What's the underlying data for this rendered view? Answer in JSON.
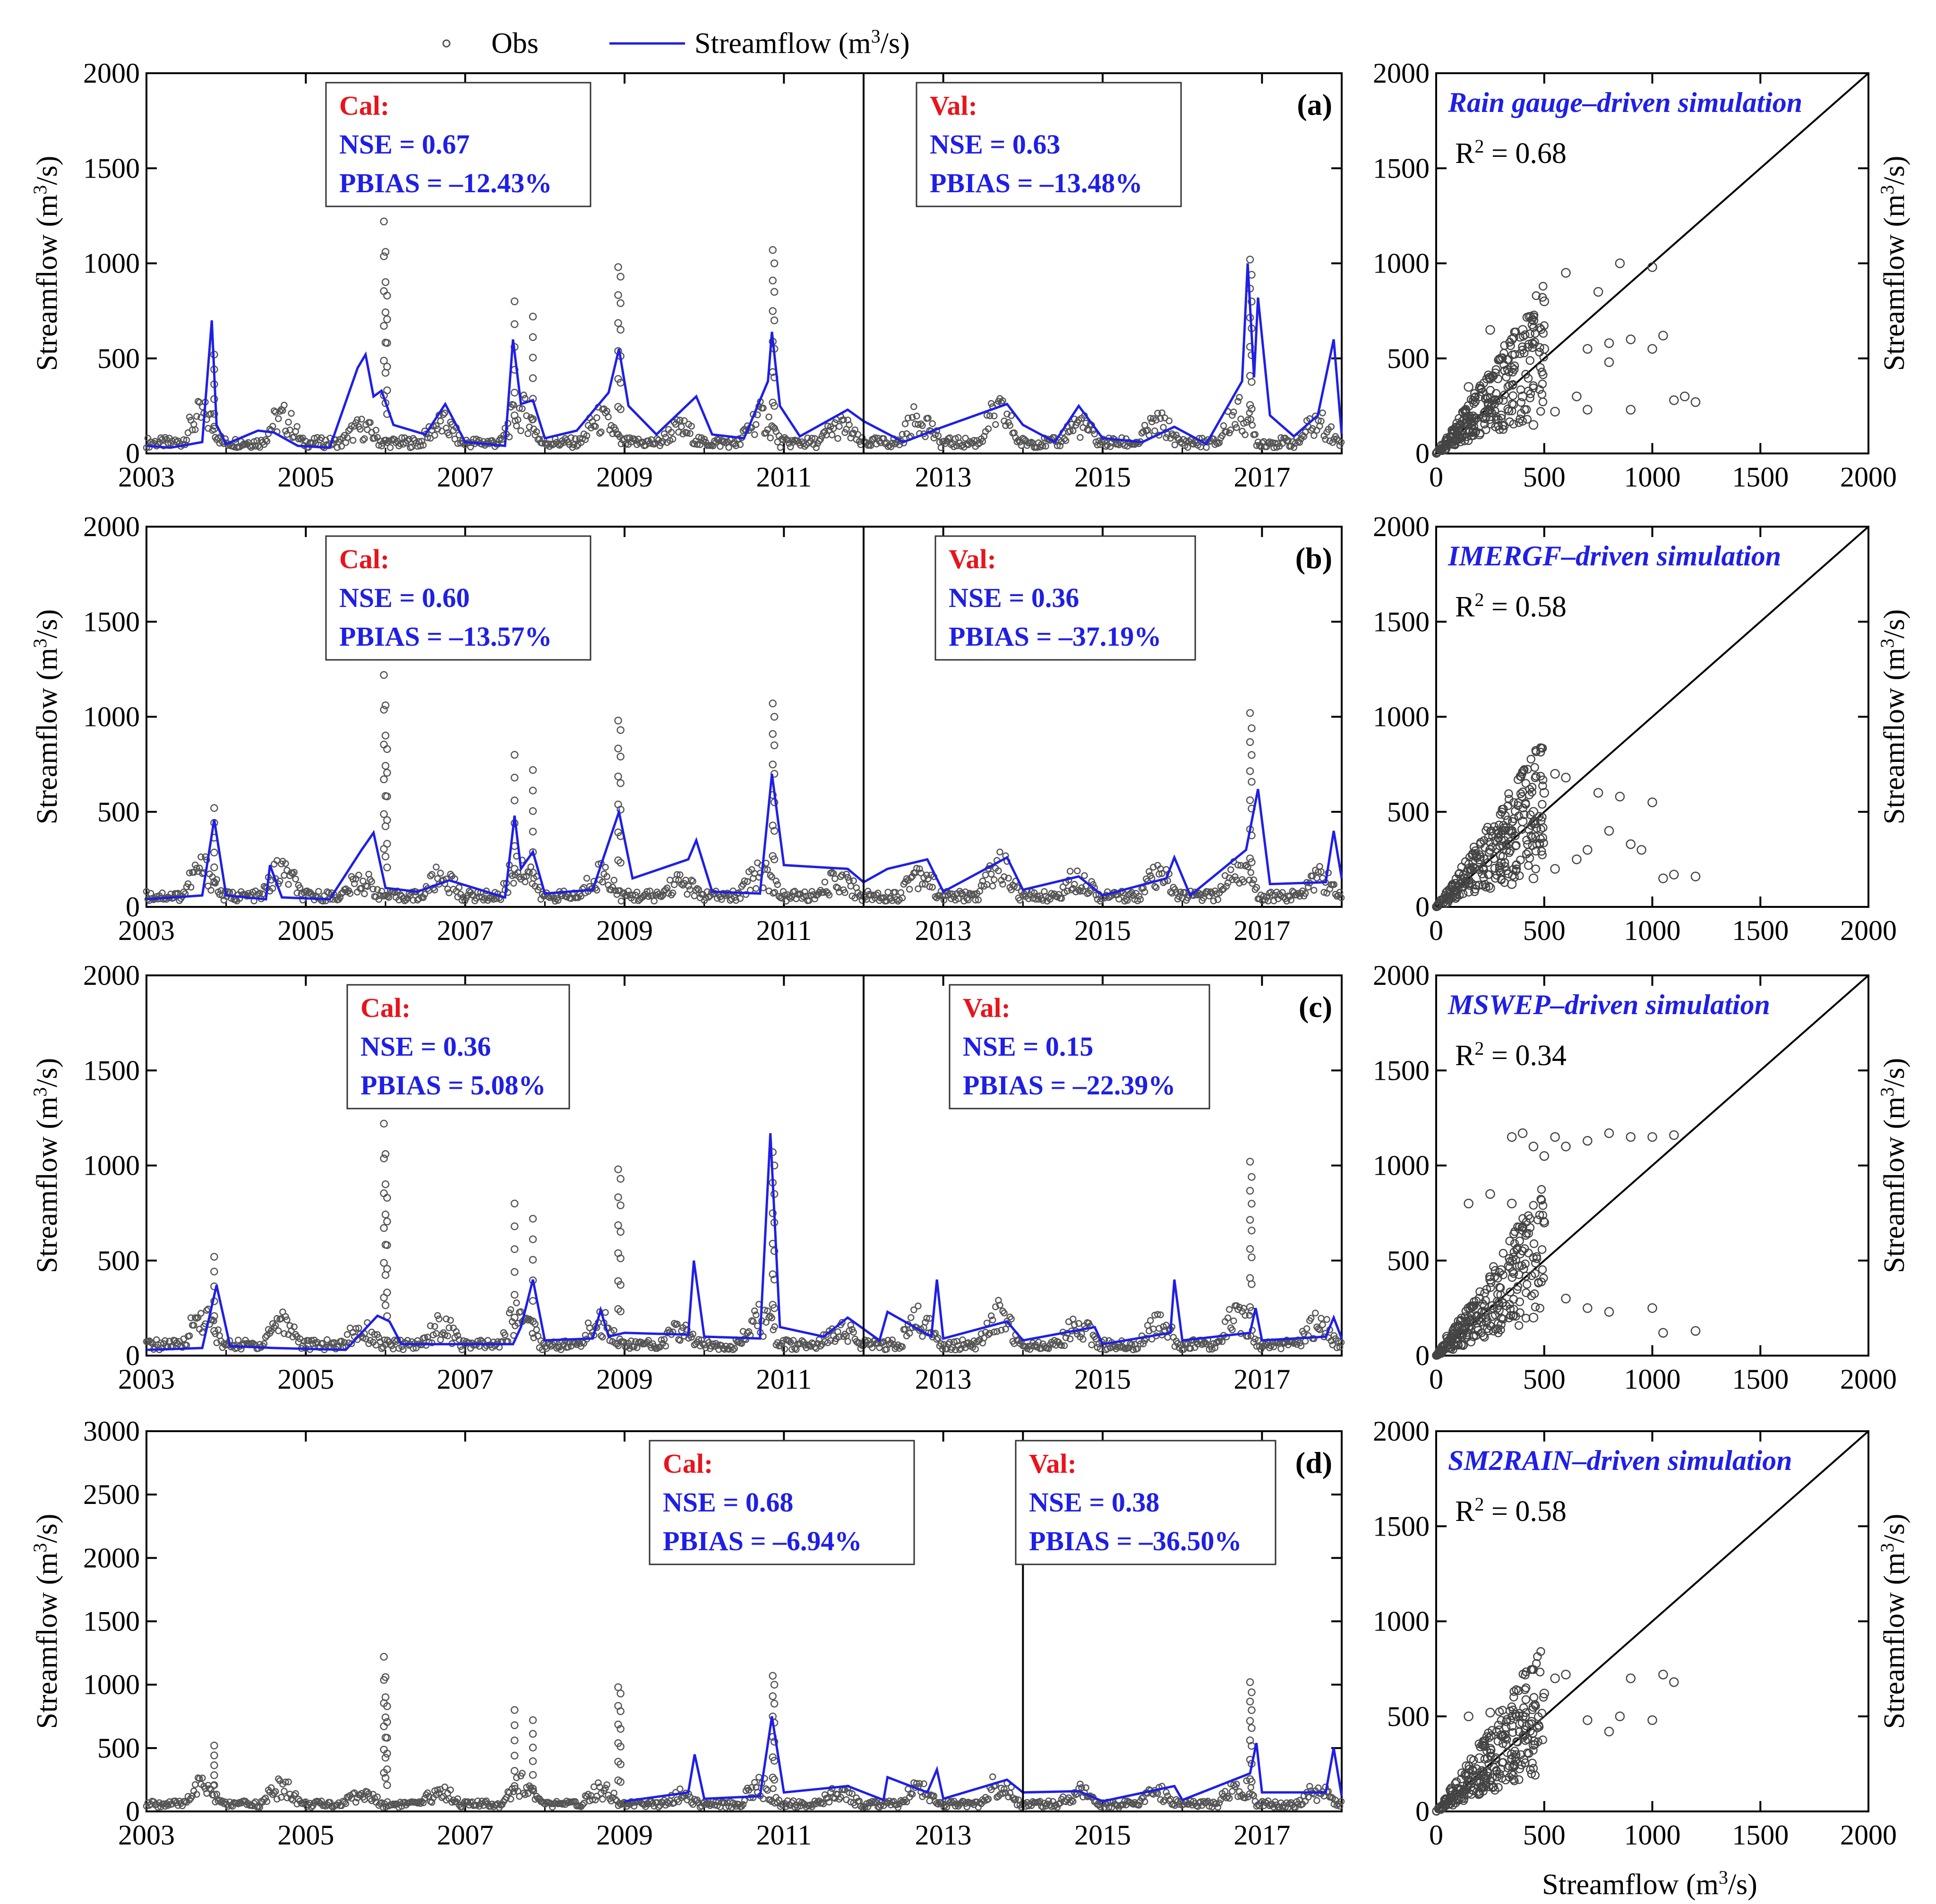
{
  "legend": {
    "obs_label": "Obs",
    "sim_label": "Streamflow (m",
    "sim_label_sup": "3",
    "sim_label_tail": "/s)"
  },
  "colors": {
    "sim": "#1f1fe6",
    "obs": "#555555",
    "cal_head": "#e8141c",
    "stats": "#1f1fe6",
    "axis": "#000000"
  },
  "axis_text": {
    "ts_ylabel": "Streamflow (m",
    "ts_ylabel_sup": "3",
    "ts_ylabel_tail": "/s)",
    "sc_ylabel": "Streamflow (m",
    "sc_ylabel_sup": "3",
    "sc_ylabel_tail": "/s)",
    "sc_xlabel": "Streamflow (m",
    "sc_xlabel_sup": "3",
    "sc_xlabel_tail": "/s)"
  },
  "chart_data": [
    {
      "type": "line",
      "panel": "(a)",
      "xlim": [
        2003,
        2018
      ],
      "ylim": [
        0,
        2000
      ],
      "xticks": [
        "2003",
        "2005",
        "2007",
        "2009",
        "2011",
        "2013",
        "2015",
        "2017"
      ],
      "yticks": [
        "0",
        "500",
        "1000",
        "1500",
        "2000"
      ],
      "split_year": 2012,
      "cal": {
        "head": "Cal:",
        "nse": "NSE = 0.67",
        "pbias": "PBIAS = –12.43%"
      },
      "val": {
        "head": "Val:",
        "nse": "NSE = 0.63",
        "pbias": "PBIAS = –13.48%"
      },
      "series": [
        {
          "name": "Streamflow (m3/s)",
          "style": "line",
          "x": [
            2003,
            2003.3,
            2003.7,
            2003.82,
            2003.88,
            2004.0,
            2004.4,
            2004.6,
            2004.9,
            2005.3,
            2005.65,
            2005.75,
            2005.85,
            2005.95,
            2006.1,
            2006.5,
            2006.75,
            2007.0,
            2007.5,
            2007.6,
            2007.7,
            2007.85,
            2008.0,
            2008.4,
            2008.8,
            2008.93,
            2009.05,
            2009.4,
            2009.8,
            2009.9,
            2010.1,
            2010.5,
            2010.8,
            2010.85,
            2010.95,
            2011.2,
            2011.8,
            2012.0,
            2012.5,
            2013.0,
            2013.8,
            2014.0,
            2014.4,
            2014.7,
            2015.0,
            2015.5,
            2015.9,
            2016.3,
            2016.75,
            2016.82,
            2016.9,
            2016.95,
            2017.1,
            2017.4,
            2017.7,
            2017.9,
            2018.0
          ],
          "values": [
            40,
            30,
            60,
            700,
            150,
            50,
            120,
            110,
            40,
            30,
            450,
            520,
            300,
            330,
            150,
            100,
            260,
            60,
            40,
            600,
            260,
            280,
            80,
            120,
            320,
            550,
            250,
            100,
            260,
            300,
            100,
            80,
            380,
            640,
            250,
            90,
            230,
            170,
            60,
            140,
            260,
            150,
            60,
            250,
            80,
            60,
            140,
            50,
            380,
            1000,
            400,
            820,
            200,
            90,
            200,
            600,
            100
          ]
        },
        {
          "name": "Obs",
          "style": "markers",
          "x": [
            2003.85,
            2005.98,
            2006.0,
            2006.02,
            2007.62,
            2007.85,
            2008.92,
            2008.95,
            2010.86,
            2010.88,
            2016.85,
            2016.87
          ],
          "values": [
            520,
            1220,
            1060,
            830,
            800,
            720,
            980,
            930,
            1070,
            1000,
            1020,
            940
          ]
        }
      ]
    },
    {
      "type": "line",
      "panel": "(b)",
      "xlim": [
        2003,
        2018
      ],
      "ylim": [
        0,
        2000
      ],
      "xticks": [
        "2003",
        "2005",
        "2007",
        "2009",
        "2011",
        "2013",
        "2015",
        "2017"
      ],
      "yticks": [
        "0",
        "500",
        "1000",
        "1500",
        "2000"
      ],
      "split_year": 2012,
      "cal": {
        "head": "Cal:",
        "nse": "NSE = 0.60",
        "pbias": "PBIAS = –13.57%"
      },
      "val": {
        "head": "Val:",
        "nse": "NSE = 0.36",
        "pbias": "PBIAS = –37.19%"
      },
      "series": [
        {
          "name": "Streamflow (m3/s)",
          "style": "line",
          "x": [
            2003,
            2003.7,
            2003.85,
            2004.0,
            2004.5,
            2004.55,
            2004.7,
            2005.3,
            2005.7,
            2005.85,
            2006.0,
            2006.4,
            2006.8,
            2007.5,
            2007.62,
            2007.7,
            2007.85,
            2008.0,
            2008.6,
            2008.93,
            2009.1,
            2009.8,
            2009.9,
            2010.1,
            2010.7,
            2010.85,
            2011.0,
            2011.8,
            2012.0,
            2012.3,
            2012.8,
            2013.0,
            2013.8,
            2014.0,
            2014.7,
            2015.0,
            2015.8,
            2015.9,
            2016.1,
            2016.8,
            2016.95,
            2017.1,
            2017.8,
            2017.9,
            2018.0
          ],
          "values": [
            40,
            60,
            460,
            60,
            40,
            220,
            50,
            40,
            300,
            390,
            100,
            80,
            140,
            50,
            480,
            200,
            290,
            70,
            90,
            500,
            150,
            250,
            350,
            80,
            70,
            700,
            220,
            200,
            130,
            200,
            250,
            80,
            260,
            90,
            160,
            60,
            150,
            260,
            60,
            300,
            620,
            120,
            130,
            400,
            150
          ]
        },
        {
          "name": "Obs",
          "style": "markers",
          "x": [
            2003.85,
            2005.98,
            2006.0,
            2006.02,
            2007.62,
            2007.85,
            2008.92,
            2008.95,
            2010.86,
            2010.88,
            2016.85,
            2016.87
          ],
          "values": [
            520,
            1220,
            1060,
            830,
            800,
            720,
            980,
            930,
            1070,
            1000,
            1020,
            940
          ]
        }
      ]
    },
    {
      "type": "line",
      "panel": "(c)",
      "xlim": [
        2003,
        2018
      ],
      "ylim": [
        0,
        2000
      ],
      "xticks": [
        "2003",
        "2005",
        "2007",
        "2009",
        "2011",
        "2013",
        "2015",
        "2017"
      ],
      "yticks": [
        "0",
        "500",
        "1000",
        "1500",
        "2000"
      ],
      "split_year": 2012,
      "cal": {
        "head": "Cal:",
        "nse": "NSE = 0.36",
        "pbias": "PBIAS = 5.08%"
      },
      "val": {
        "head": "Val:",
        "nse": "NSE = 0.15",
        "pbias": "PBIAS = –22.39%"
      },
      "series": [
        {
          "name": "Streamflow (m3/s)",
          "style": "line",
          "x": [
            2003,
            2003.7,
            2003.88,
            2004.05,
            2004.6,
            2005.5,
            2005.9,
            2006.05,
            2006.2,
            2007.6,
            2007.7,
            2007.85,
            2008.0,
            2008.6,
            2008.7,
            2008.8,
            2009.0,
            2009.8,
            2009.87,
            2010.0,
            2010.7,
            2010.83,
            2010.95,
            2011.5,
            2011.8,
            2012.2,
            2012.3,
            2012.85,
            2012.92,
            2013.0,
            2013.8,
            2014.0,
            2014.9,
            2015.0,
            2015.85,
            2015.9,
            2016.0,
            2016.85,
            2016.92,
            2017.0,
            2017.8,
            2017.9,
            2018.0
          ],
          "values": [
            30,
            40,
            370,
            50,
            40,
            30,
            210,
            180,
            60,
            60,
            150,
            400,
            80,
            90,
            240,
            100,
            120,
            110,
            500,
            100,
            90,
            1170,
            150,
            100,
            200,
            80,
            230,
            100,
            400,
            90,
            180,
            80,
            150,
            60,
            120,
            400,
            80,
            120,
            250,
            80,
            100,
            200,
            90
          ]
        },
        {
          "name": "Obs",
          "style": "markers",
          "x": [
            2003.85,
            2005.98,
            2006.0,
            2006.02,
            2007.62,
            2007.85,
            2008.92,
            2008.95,
            2010.86,
            2010.88,
            2016.85,
            2016.87
          ],
          "values": [
            520,
            1220,
            1060,
            830,
            800,
            720,
            980,
            930,
            1070,
            1000,
            1020,
            940
          ]
        }
      ]
    },
    {
      "type": "line",
      "panel": "(d)",
      "xlim": [
        2003,
        2018
      ],
      "ylim": [
        0,
        3000
      ],
      "xticks": [
        "2003",
        "2005",
        "2007",
        "2009",
        "2011",
        "2013",
        "2015",
        "2017"
      ],
      "yticks": [
        "0",
        "500",
        "1000",
        "1500",
        "2000",
        "2500",
        "3000"
      ],
      "split_year": 2014,
      "cal": {
        "head": "Cal:",
        "nse": "NSE = 0.68",
        "pbias": "PBIAS = –6.94%"
      },
      "val": {
        "head": "Val:",
        "nse": "NSE = 0.38",
        "pbias": "PBIAS = –36.50%"
      },
      "series": [
        {
          "name": "Streamflow (m3/s)",
          "style": "line",
          "x": [
            2009.0,
            2009.8,
            2009.88,
            2010.0,
            2010.7,
            2010.85,
            2011.0,
            2011.8,
            2012.25,
            2012.3,
            2012.8,
            2012.92,
            2013.0,
            2013.8,
            2014.0,
            2014.7,
            2015.0,
            2015.9,
            2016.0,
            2016.85,
            2016.93,
            2017.0,
            2017.8,
            2017.9,
            2018.0
          ],
          "values": [
            80,
            150,
            450,
            100,
            120,
            750,
            150,
            200,
            90,
            270,
            150,
            330,
            100,
            250,
            150,
            160,
            80,
            200,
            90,
            300,
            540,
            150,
            150,
            500,
            120
          ]
        },
        {
          "name": "Obs",
          "style": "markers",
          "x": [
            2003.85,
            2005.98,
            2006.0,
            2006.02,
            2007.62,
            2007.85,
            2008.92,
            2008.95,
            2010.86,
            2010.88,
            2016.85,
            2016.87
          ],
          "values": [
            520,
            1220,
            1060,
            830,
            800,
            720,
            980,
            930,
            1070,
            1000,
            1020,
            940
          ]
        }
      ]
    },
    {
      "type": "scatter",
      "panel": "(a) scatter",
      "title": "Rain gauge–driven simulation",
      "r2_prefix": "R",
      "r2_sup": "2",
      "r2_value": " = 0.68",
      "xlim": [
        0,
        2000
      ],
      "ylim": [
        0,
        2000
      ],
      "xticks": [
        "0",
        "500",
        "1000",
        "1500",
        "2000"
      ],
      "yticks": [
        "0",
        "500",
        "1000",
        "1500",
        "2000"
      ],
      "x": [
        50,
        100,
        150,
        200,
        250,
        300,
        350,
        400,
        450,
        500,
        300,
        200,
        150,
        400,
        350,
        500,
        600,
        700,
        800,
        900,
        1000,
        1050,
        1100,
        1150,
        1200,
        800,
        700,
        900,
        1000,
        850,
        750,
        450,
        550,
        650,
        250
      ],
      "y": [
        60,
        120,
        250,
        300,
        400,
        500,
        600,
        650,
        700,
        800,
        200,
        100,
        350,
        300,
        450,
        550,
        950,
        550,
        480,
        600,
        980,
        620,
        280,
        300,
        270,
        580,
        230,
        230,
        550,
        1000,
        850,
        150,
        220,
        300,
        650
      ]
    },
    {
      "type": "scatter",
      "panel": "(b) scatter",
      "title": "IMERGF–driven simulation",
      "r2_prefix": "R",
      "r2_sup": "2",
      "r2_value": " = 0.58",
      "xlim": [
        0,
        2000
      ],
      "ylim": [
        0,
        2000
      ],
      "xticks": [
        "0",
        "500",
        "1000",
        "1500",
        "2000"
      ],
      "yticks": [
        "0",
        "500",
        "1000",
        "1500",
        "2000"
      ],
      "x": [
        50,
        100,
        150,
        200,
        250,
        300,
        350,
        400,
        450,
        500,
        550,
        600,
        700,
        750,
        800,
        850,
        900,
        950,
        1000,
        1050,
        1100,
        1200,
        650,
        550,
        450,
        350,
        250,
        150
      ],
      "y": [
        50,
        100,
        200,
        250,
        300,
        350,
        400,
        450,
        500,
        600,
        700,
        680,
        300,
        600,
        400,
        580,
        330,
        300,
        550,
        150,
        170,
        160,
        250,
        200,
        150,
        120,
        100,
        80
      ]
    },
    {
      "type": "scatter",
      "panel": "(c) scatter",
      "title": "MSWEP–driven simulation",
      "r2_prefix": "R",
      "r2_sup": "2",
      "r2_value": " = 0.34",
      "xlim": [
        0,
        2000
      ],
      "ylim": [
        0,
        2000
      ],
      "xticks": [
        "0",
        "500",
        "1000",
        "1500",
        "2000"
      ],
      "yticks": [
        "0",
        "500",
        "1000",
        "1500",
        "2000"
      ],
      "x": [
        50,
        100,
        150,
        200,
        250,
        300,
        350,
        400,
        450,
        500,
        550,
        600,
        700,
        800,
        900,
        1000,
        1100,
        1200,
        350,
        500,
        450,
        600,
        700,
        800,
        1000,
        1050,
        150,
        250
      ],
      "y": [
        100,
        150,
        250,
        300,
        400,
        450,
        1150,
        1170,
        1100,
        1050,
        1150,
        1100,
        1130,
        1170,
        1150,
        1150,
        1160,
        130,
        800,
        700,
        200,
        300,
        250,
        230,
        250,
        120,
        800,
        850
      ]
    },
    {
      "type": "scatter",
      "panel": "(d) scatter",
      "title": "SM2RAIN–driven simulation",
      "r2_prefix": "R",
      "r2_sup": "2",
      "r2_value": " = 0.58",
      "xlim": [
        0,
        2000
      ],
      "ylim": [
        0,
        2000
      ],
      "xticks": [
        "0",
        "500",
        "1000",
        "1500",
        "2000"
      ],
      "yticks": [
        "0",
        "500",
        "1000",
        "1500",
        "2000"
      ],
      "x": [
        50,
        100,
        150,
        200,
        250,
        300,
        350,
        400,
        450,
        500,
        550,
        600,
        700,
        800,
        850,
        900,
        1000,
        1050,
        1100,
        150,
        250,
        350,
        450
      ],
      "y": [
        60,
        120,
        200,
        280,
        330,
        400,
        450,
        500,
        550,
        620,
        700,
        720,
        480,
        420,
        500,
        700,
        480,
        720,
        680,
        500,
        520,
        300,
        350
      ]
    }
  ],
  "axis_ticks": {
    "sc_bottom_label": "Streamflow (m³/s)"
  }
}
